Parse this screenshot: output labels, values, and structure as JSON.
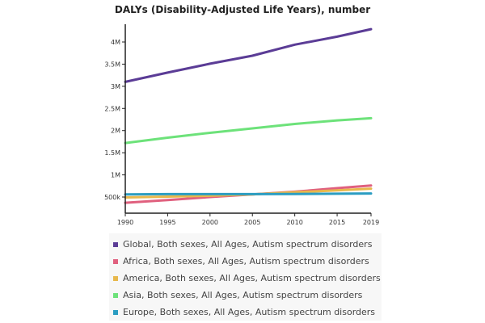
{
  "chart_data": {
    "type": "line",
    "title": "DALYs (Disability-Adjusted Life Years), number",
    "xlabel": "",
    "ylabel": "",
    "x": [
      1990,
      1995,
      2000,
      2005,
      2010,
      2015,
      2019
    ],
    "x_ticks": [
      1990,
      1995,
      2000,
      2005,
      2010,
      2015,
      2019
    ],
    "x_tick_labels": [
      "1990",
      "1995",
      "2000",
      "2005",
      "2010",
      "2015",
      "2019"
    ],
    "y_ticks": [
      500000,
      1000000,
      1500000,
      2000000,
      2500000,
      3000000,
      3500000,
      4000000
    ],
    "y_tick_labels": [
      "500k",
      "1M",
      "1.5M",
      "2M",
      "2.5M",
      "3M",
      "3.5M",
      "4M"
    ],
    "xlim": [
      1990,
      2019
    ],
    "ylim": [
      130000,
      4350000
    ],
    "grid": false,
    "legend_position": "bottom",
    "series": [
      {
        "name": "Global, Both sexes, All Ages, Autism spectrum disorders",
        "color": "#5b3c96",
        "values": [
          3100000,
          3310000,
          3510000,
          3690000,
          3940000,
          4120000,
          4290000
        ]
      },
      {
        "name": "Africa, Both sexes, All Ages, Autism spectrum disorders",
        "color": "#e0607e",
        "values": [
          370000,
          430000,
          500000,
          560000,
          620000,
          700000,
          760000
        ]
      },
      {
        "name": "America, Both sexes, All Ages, Autism spectrum disorders",
        "color": "#e8b84c",
        "values": [
          490000,
          510000,
          530000,
          560000,
          610000,
          650000,
          690000
        ]
      },
      {
        "name": "Asia, Both sexes, All Ages, Autism spectrum disorders",
        "color": "#6de27a",
        "values": [
          1720000,
          1840000,
          1950000,
          2050000,
          2150000,
          2230000,
          2280000
        ]
      },
      {
        "name": "Europe, Both sexes, All Ages, Autism spectrum disorders",
        "color": "#2b9dc2",
        "values": [
          560000,
          565000,
          565000,
          565000,
          570000,
          575000,
          580000
        ]
      }
    ]
  }
}
